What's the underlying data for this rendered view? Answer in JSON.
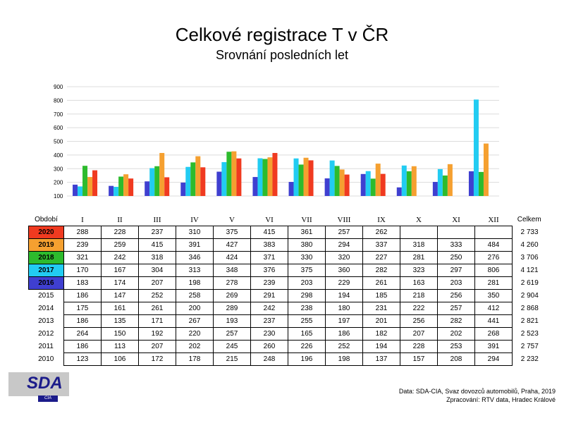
{
  "chart_data": {
    "type": "bar",
    "title": "Celkové registrace T v ČR",
    "subtitle": "Srovnání posledních let",
    "ylim": [
      100,
      900
    ],
    "yticks": [
      "900",
      "800",
      "700",
      "600",
      "500",
      "400",
      "300",
      "200",
      "100"
    ],
    "categories": [
      "I",
      "II",
      "III",
      "IV",
      "V",
      "VI",
      "VII",
      "VIII",
      "IX",
      "X",
      "XI",
      "XII"
    ],
    "grid": true,
    "series": [
      {
        "name": "2016",
        "color": "#3f3fd0",
        "values": [
          183,
          174,
          207,
          198,
          278,
          239,
          203,
          229,
          261,
          163,
          203,
          281
        ]
      },
      {
        "name": "2017",
        "color": "#22ccf2",
        "values": [
          170,
          167,
          304,
          313,
          348,
          376,
          375,
          360,
          282,
          323,
          297,
          806
        ]
      },
      {
        "name": "2018",
        "color": "#2dbb2d",
        "values": [
          321,
          242,
          318,
          346,
          424,
          371,
          330,
          320,
          227,
          281,
          250,
          276
        ]
      },
      {
        "name": "2019",
        "color": "#f5a030",
        "values": [
          239,
          259,
          415,
          391,
          427,
          383,
          380,
          294,
          337,
          318,
          333,
          484
        ]
      },
      {
        "name": "2020",
        "color": "#f03a20",
        "values": [
          288,
          228,
          237,
          310,
          375,
          415,
          361,
          257,
          262,
          null,
          null,
          null
        ]
      }
    ]
  },
  "table": {
    "label_header": "Období",
    "total_header": "Celkem",
    "rows": [
      {
        "year": "2020",
        "color": "#f03a20",
        "cells": [
          "288",
          "228",
          "237",
          "310",
          "375",
          "415",
          "361",
          "257",
          "262",
          "",
          "",
          ""
        ],
        "total": "2 733"
      },
      {
        "year": "2019",
        "color": "#f5a030",
        "cells": [
          "239",
          "259",
          "415",
          "391",
          "427",
          "383",
          "380",
          "294",
          "337",
          "318",
          "333",
          "484"
        ],
        "total": "4 260"
      },
      {
        "year": "2018",
        "color": "#2dbb2d",
        "cells": [
          "321",
          "242",
          "318",
          "346",
          "424",
          "371",
          "330",
          "320",
          "227",
          "281",
          "250",
          "276"
        ],
        "total": "3 706"
      },
      {
        "year": "2017",
        "color": "#22ccf2",
        "cells": [
          "170",
          "167",
          "304",
          "313",
          "348",
          "376",
          "375",
          "360",
          "282",
          "323",
          "297",
          "806"
        ],
        "total": "4 121"
      },
      {
        "year": "2016",
        "color": "#3f3fd0",
        "cells": [
          "183",
          "174",
          "207",
          "198",
          "278",
          "239",
          "203",
          "229",
          "261",
          "163",
          "203",
          "281"
        ],
        "total": "2 619"
      },
      {
        "year": "2015",
        "color": "",
        "cells": [
          "186",
          "147",
          "252",
          "258",
          "269",
          "291",
          "298",
          "194",
          "185",
          "218",
          "256",
          "350"
        ],
        "total": "2 904"
      },
      {
        "year": "2014",
        "color": "",
        "cells": [
          "175",
          "161",
          "261",
          "200",
          "289",
          "242",
          "238",
          "180",
          "231",
          "222",
          "257",
          "412"
        ],
        "total": "2 868"
      },
      {
        "year": "2013",
        "color": "",
        "cells": [
          "186",
          "135",
          "171",
          "267",
          "193",
          "237",
          "255",
          "197",
          "201",
          "256",
          "282",
          "441"
        ],
        "total": "2 821"
      },
      {
        "year": "2012",
        "color": "",
        "cells": [
          "264",
          "150",
          "192",
          "220",
          "257",
          "230",
          "165",
          "186",
          "182",
          "207",
          "202",
          "268"
        ],
        "total": "2 523"
      },
      {
        "year": "2011",
        "color": "",
        "cells": [
          "186",
          "113",
          "207",
          "202",
          "245",
          "260",
          "226",
          "252",
          "194",
          "228",
          "253",
          "391"
        ],
        "total": "2 757"
      },
      {
        "year": "2010",
        "color": "",
        "cells": [
          "123",
          "106",
          "172",
          "178",
          "215",
          "248",
          "196",
          "198",
          "137",
          "157",
          "208",
          "294"
        ],
        "total": "2 232"
      }
    ]
  },
  "footer": {
    "logo_text": "SDA",
    "logo_sub": "CIA",
    "source": "Data: SDA-CIA, Svaz dovozců automobilů, Praha, 2019",
    "processed": "Zpracování: RTV data, Hradec Králové"
  }
}
